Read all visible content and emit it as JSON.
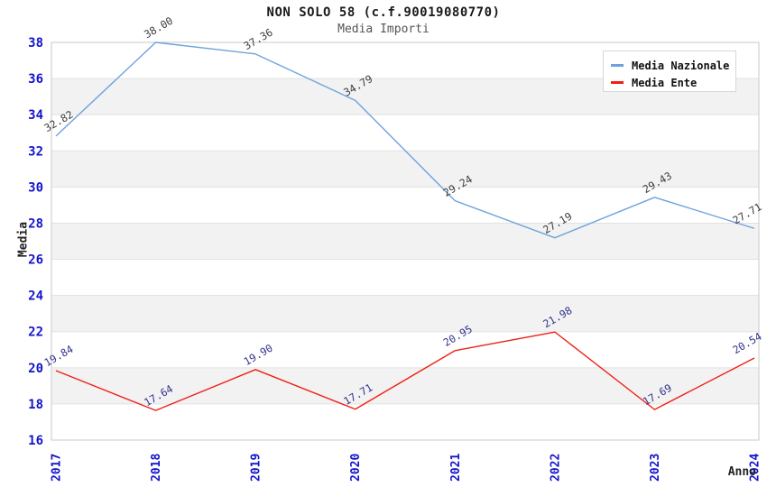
{
  "chart_data": {
    "type": "line",
    "title": "NON SOLO 58 (c.f.90019080770)",
    "subtitle": "Media Importi",
    "xlabel": "Anno",
    "ylabel": "Media",
    "x": [
      "2017",
      "2018",
      "2019",
      "2020",
      "2021",
      "2022",
      "2023",
      "2024"
    ],
    "ylim": [
      16,
      38
    ],
    "ytick_step": 2,
    "yticks": [
      "16",
      "18",
      "20",
      "22",
      "24",
      "26",
      "28",
      "30",
      "32",
      "34",
      "36",
      "38"
    ],
    "grid": true,
    "legend_position": "top-right",
    "plot_band_color": "#f2f2f2",
    "gridline_color": "#e1e1e1",
    "plot_border_color": "#c9c9c9",
    "axis_tick_color": "#1414cc",
    "series": [
      {
        "name": "Media Nazionale",
        "color": "#6da2e0",
        "label_color": "#3c3c3c",
        "values": [
          32.82,
          38.0,
          37.36,
          34.79,
          29.24,
          27.19,
          29.43,
          27.71
        ],
        "labels": [
          "32.82",
          "38.00",
          "37.36",
          "34.79",
          "29.24",
          "27.19",
          "29.43",
          "27.71"
        ]
      },
      {
        "name": "Media Ente",
        "color": "#ee2014",
        "label_color": "#34348e",
        "values": [
          19.84,
          17.64,
          19.9,
          17.71,
          20.95,
          21.98,
          17.69,
          20.54
        ],
        "labels": [
          "19.84",
          "17.64",
          "19.90",
          "17.71",
          "20.95",
          "21.98",
          "17.69",
          "20.54"
        ]
      }
    ]
  }
}
